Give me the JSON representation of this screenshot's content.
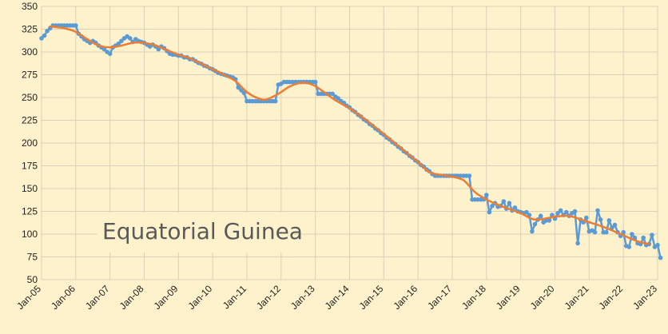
{
  "chart_data": {
    "type": "line",
    "title": "",
    "xlabel": "",
    "ylabel": "",
    "annotation": "Equatorial Guinea",
    "ylim": [
      50,
      350
    ],
    "yticks": [
      50,
      75,
      100,
      125,
      150,
      175,
      200,
      225,
      250,
      275,
      300,
      325,
      350
    ],
    "xticks": [
      "Jan-05",
      "Jan-06",
      "Jan-07",
      "Jan-08",
      "Jan-09",
      "Jan-10",
      "Jan-11",
      "Jan-12",
      "Jan-13",
      "Jan-14",
      "Jan-15",
      "Jan-16",
      "Jan-17",
      "Jan-18",
      "Jan-19",
      "Jan-20",
      "Jan-21",
      "Jan-22",
      "Jan-23"
    ],
    "xlim": [
      "Jan-05",
      "Jan-23"
    ],
    "grid": true,
    "colors": {
      "series_monthly": "#5b9bd5",
      "series_trend": "#ed7d31",
      "background": "#fef2cc"
    },
    "series": [
      {
        "name": "",
        "style": "line-markers",
        "points": [
          [
            "2005-01",
            315
          ],
          [
            "2005-02",
            318
          ],
          [
            "2005-03",
            323
          ],
          [
            "2005-04",
            326
          ],
          [
            "2005-05",
            329
          ],
          [
            "2005-06",
            329
          ],
          [
            "2005-07",
            329
          ],
          [
            "2005-08",
            329
          ],
          [
            "2005-09",
            329
          ],
          [
            "2005-10",
            329
          ],
          [
            "2005-11",
            329
          ],
          [
            "2005-12",
            329
          ],
          [
            "2006-01",
            329
          ],
          [
            "2006-02",
            320
          ],
          [
            "2006-03",
            317
          ],
          [
            "2006-04",
            314
          ],
          [
            "2006-05",
            312
          ],
          [
            "2006-06",
            310
          ],
          [
            "2006-07",
            312
          ],
          [
            "2006-08",
            310
          ],
          [
            "2006-09",
            307
          ],
          [
            "2006-10",
            305
          ],
          [
            "2006-11",
            303
          ],
          [
            "2006-12",
            300
          ],
          [
            "2007-01",
            298
          ],
          [
            "2007-02",
            305
          ],
          [
            "2007-03",
            307
          ],
          [
            "2007-04",
            309
          ],
          [
            "2007-05",
            312
          ],
          [
            "2007-06",
            315
          ],
          [
            "2007-07",
            317
          ],
          [
            "2007-08",
            315
          ],
          [
            "2007-09",
            311
          ],
          [
            "2007-10",
            314
          ],
          [
            "2007-11",
            312
          ],
          [
            "2007-12",
            311
          ],
          [
            "2008-01",
            310
          ],
          [
            "2008-02",
            308
          ],
          [
            "2008-03",
            306
          ],
          [
            "2008-04",
            308
          ],
          [
            "2008-05",
            306
          ],
          [
            "2008-06",
            303
          ],
          [
            "2008-07",
            306
          ],
          [
            "2008-08",
            304
          ],
          [
            "2008-09",
            301
          ],
          [
            "2008-10",
            298
          ],
          [
            "2008-11",
            297
          ],
          [
            "2008-12",
            297
          ],
          [
            "2009-01",
            296
          ],
          [
            "2009-02",
            296
          ],
          [
            "2009-03",
            294
          ],
          [
            "2009-04",
            294
          ],
          [
            "2009-05",
            292
          ],
          [
            "2009-06",
            292
          ],
          [
            "2009-07",
            290
          ],
          [
            "2009-08",
            288
          ],
          [
            "2009-09",
            287
          ],
          [
            "2009-10",
            285
          ],
          [
            "2009-11",
            284
          ],
          [
            "2009-12",
            282
          ],
          [
            "2010-01",
            281
          ],
          [
            "2010-02",
            279
          ],
          [
            "2010-03",
            277
          ],
          [
            "2010-04",
            276
          ],
          [
            "2010-05",
            275
          ],
          [
            "2010-06",
            274
          ],
          [
            "2010-07",
            273
          ],
          [
            "2010-08",
            272
          ],
          [
            "2010-09",
            270
          ],
          [
            "2010-10",
            261
          ],
          [
            "2010-11",
            258
          ],
          [
            "2010-12",
            255
          ],
          [
            "2011-01",
            246
          ],
          [
            "2011-02",
            246
          ],
          [
            "2011-03",
            246
          ],
          [
            "2011-04",
            246
          ],
          [
            "2011-05",
            246
          ],
          [
            "2011-06",
            246
          ],
          [
            "2011-07",
            246
          ],
          [
            "2011-08",
            246
          ],
          [
            "2011-09",
            246
          ],
          [
            "2011-10",
            246
          ],
          [
            "2011-11",
            246
          ],
          [
            "2011-12",
            264
          ],
          [
            "2012-01",
            265
          ],
          [
            "2012-02",
            267
          ],
          [
            "2012-03",
            267
          ],
          [
            "2012-04",
            267
          ],
          [
            "2012-05",
            267
          ],
          [
            "2012-06",
            267
          ],
          [
            "2012-07",
            267
          ],
          [
            "2012-08",
            267
          ],
          [
            "2012-09",
            267
          ],
          [
            "2012-10",
            267
          ],
          [
            "2012-11",
            267
          ],
          [
            "2012-12",
            267
          ],
          [
            "2013-01",
            267
          ],
          [
            "2013-02",
            254
          ],
          [
            "2013-03",
            254
          ],
          [
            "2013-04",
            254
          ],
          [
            "2013-05",
            254
          ],
          [
            "2013-06",
            254
          ],
          [
            "2013-07",
            254
          ],
          [
            "2013-08",
            251
          ],
          [
            "2013-09",
            249
          ],
          [
            "2013-10",
            246
          ],
          [
            "2013-11",
            244
          ],
          [
            "2013-12",
            241
          ],
          [
            "2014-01",
            239
          ],
          [
            "2014-02",
            236
          ],
          [
            "2014-03",
            234
          ],
          [
            "2014-04",
            231
          ],
          [
            "2014-05",
            229
          ],
          [
            "2014-06",
            226
          ],
          [
            "2014-07",
            224
          ],
          [
            "2014-08",
            221
          ],
          [
            "2014-09",
            219
          ],
          [
            "2014-10",
            216
          ],
          [
            "2014-11",
            214
          ],
          [
            "2014-12",
            211
          ],
          [
            "2015-01",
            209
          ],
          [
            "2015-02",
            206
          ],
          [
            "2015-03",
            204
          ],
          [
            "2015-04",
            201
          ],
          [
            "2015-05",
            199
          ],
          [
            "2015-06",
            196
          ],
          [
            "2015-07",
            194
          ],
          [
            "2015-08",
            191
          ],
          [
            "2015-09",
            189
          ],
          [
            "2015-10",
            186
          ],
          [
            "2015-11",
            184
          ],
          [
            "2015-12",
            181
          ],
          [
            "2016-01",
            179
          ],
          [
            "2016-02",
            176
          ],
          [
            "2016-03",
            174
          ],
          [
            "2016-04",
            171
          ],
          [
            "2016-05",
            169
          ],
          [
            "2016-06",
            166
          ],
          [
            "2016-07",
            164
          ],
          [
            "2016-08",
            164
          ],
          [
            "2016-09",
            164
          ],
          [
            "2016-10",
            164
          ],
          [
            "2016-11",
            164
          ],
          [
            "2016-12",
            164
          ],
          [
            "2017-01",
            164
          ],
          [
            "2017-02",
            164
          ],
          [
            "2017-03",
            164
          ],
          [
            "2017-04",
            164
          ],
          [
            "2017-05",
            164
          ],
          [
            "2017-06",
            164
          ],
          [
            "2017-07",
            164
          ],
          [
            "2017-08",
            138
          ],
          [
            "2017-09",
            138
          ],
          [
            "2017-10",
            138
          ],
          [
            "2017-11",
            138
          ],
          [
            "2017-12",
            138
          ],
          [
            "2018-01",
            143
          ],
          [
            "2018-02",
            124
          ],
          [
            "2018-03",
            131
          ],
          [
            "2018-04",
            134
          ],
          [
            "2018-05",
            130
          ],
          [
            "2018-06",
            131
          ],
          [
            "2018-07",
            136
          ],
          [
            "2018-08",
            128
          ],
          [
            "2018-09",
            134
          ],
          [
            "2018-10",
            126
          ],
          [
            "2018-11",
            129
          ],
          [
            "2018-12",
            125
          ],
          [
            "2019-01",
            124
          ],
          [
            "2019-02",
            123
          ],
          [
            "2019-03",
            124
          ],
          [
            "2019-04",
            121
          ],
          [
            "2019-05",
            103
          ],
          [
            "2019-06",
            111
          ],
          [
            "2019-07",
            116
          ],
          [
            "2019-08",
            120
          ],
          [
            "2019-09",
            113
          ],
          [
            "2019-10",
            115
          ],
          [
            "2019-11",
            115
          ],
          [
            "2019-12",
            121
          ],
          [
            "2020-01",
            117
          ],
          [
            "2020-02",
            123
          ],
          [
            "2020-03",
            126
          ],
          [
            "2020-04",
            121
          ],
          [
            "2020-05",
            124
          ],
          [
            "2020-06",
            120
          ],
          [
            "2020-07",
            123
          ],
          [
            "2020-08",
            125
          ],
          [
            "2020-09",
            90
          ],
          [
            "2020-10",
            116
          ],
          [
            "2020-11",
            113
          ],
          [
            "2020-12",
            118
          ],
          [
            "2021-01",
            103
          ],
          [
            "2021-02",
            104
          ],
          [
            "2021-03",
            102
          ],
          [
            "2021-04",
            126
          ],
          [
            "2021-05",
            116
          ],
          [
            "2021-06",
            102
          ],
          [
            "2021-07",
            102
          ],
          [
            "2021-08",
            115
          ],
          [
            "2021-09",
            107
          ],
          [
            "2021-10",
            110
          ],
          [
            "2021-11",
            102
          ],
          [
            "2021-12",
            98
          ],
          [
            "2022-01",
            102
          ],
          [
            "2022-02",
            87
          ],
          [
            "2022-03",
            86
          ],
          [
            "2022-04",
            100
          ],
          [
            "2022-05",
            96
          ],
          [
            "2022-06",
            90
          ],
          [
            "2022-07",
            89
          ],
          [
            "2022-08",
            96
          ],
          [
            "2022-09",
            88
          ],
          [
            "2022-10",
            89
          ],
          [
            "2022-11",
            99
          ],
          [
            "2022-12",
            86
          ],
          [
            "2023-01",
            88
          ],
          [
            "2023-02",
            74
          ]
        ]
      },
      {
        "name": "",
        "style": "smooth-line",
        "points": [
          [
            "2005-04",
            328
          ],
          [
            "2005-09",
            326
          ],
          [
            "2006-01",
            322
          ],
          [
            "2006-05",
            314
          ],
          [
            "2006-09",
            307
          ],
          [
            "2007-01",
            305
          ],
          [
            "2007-05",
            307
          ],
          [
            "2007-09",
            310
          ],
          [
            "2008-01",
            310
          ],
          [
            "2008-05",
            307
          ],
          [
            "2008-09",
            302
          ],
          [
            "2009-01",
            297
          ],
          [
            "2009-05",
            293
          ],
          [
            "2009-09",
            287
          ],
          [
            "2010-01",
            281
          ],
          [
            "2010-05",
            275
          ],
          [
            "2010-09",
            268
          ],
          [
            "2011-01",
            256
          ],
          [
            "2011-05",
            249
          ],
          [
            "2011-08",
            248
          ],
          [
            "2011-12",
            254
          ],
          [
            "2012-04",
            262
          ],
          [
            "2012-08",
            266
          ],
          [
            "2012-12",
            264
          ],
          [
            "2013-04",
            256
          ],
          [
            "2013-08",
            247
          ],
          [
            "2014-01",
            238
          ],
          [
            "2014-06",
            227
          ],
          [
            "2015-01",
            210
          ],
          [
            "2015-06",
            197
          ],
          [
            "2016-01",
            179
          ],
          [
            "2016-05",
            168
          ],
          [
            "2016-09",
            165
          ],
          [
            "2017-01",
            163
          ],
          [
            "2017-05",
            159
          ],
          [
            "2017-09",
            146
          ],
          [
            "2018-01",
            138
          ],
          [
            "2018-06",
            131
          ],
          [
            "2019-01",
            123
          ],
          [
            "2019-06",
            116
          ],
          [
            "2020-01",
            119
          ],
          [
            "2020-06",
            120
          ],
          [
            "2020-12",
            114
          ],
          [
            "2021-06",
            108
          ],
          [
            "2021-12",
            100
          ],
          [
            "2022-06",
            92
          ],
          [
            "2022-10",
            89
          ]
        ]
      }
    ]
  }
}
